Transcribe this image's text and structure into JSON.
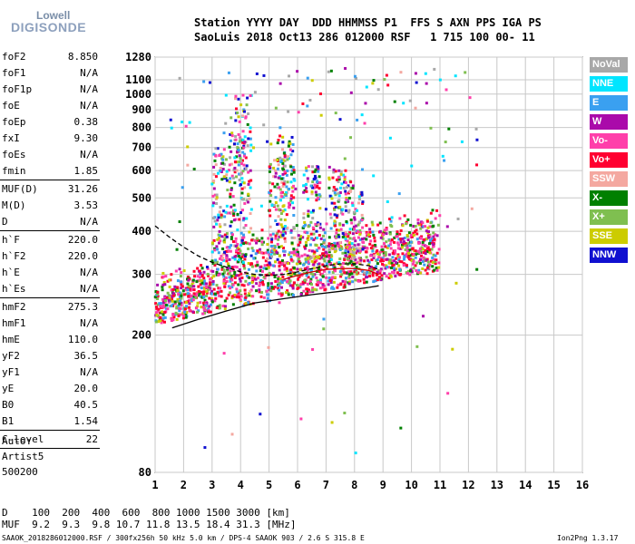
{
  "logo": {
    "line1": "Lowell",
    "line2": "DIGISONDE"
  },
  "header": {
    "line1": "Station YYYY DAY  DDD HHMMSS P1  FFS S AXN PPS IGA PS",
    "line2": "SaoLuis 2018 Oct13 286 012000 RSF   1 715 100 00- 11"
  },
  "params": [
    {
      "name": "foF2",
      "value": "8.850"
    },
    {
      "name": "foF1",
      "value": "N/A"
    },
    {
      "name": "foF1p",
      "value": "N/A"
    },
    {
      "name": "foE",
      "value": "N/A"
    },
    {
      "name": "foEp",
      "value": "0.38"
    },
    {
      "name": "fxI",
      "value": "9.30"
    },
    {
      "name": "foEs",
      "value": "N/A"
    },
    {
      "name": "fmin",
      "value": "1.85"
    },
    {
      "name": "MUF(D)",
      "value": "31.26"
    },
    {
      "name": "M(D)",
      "value": "3.53"
    },
    {
      "name": "D",
      "value": "N/A"
    },
    {
      "name": "h`F",
      "value": "220.0"
    },
    {
      "name": "h`F2",
      "value": "220.0"
    },
    {
      "name": "h`E",
      "value": "N/A"
    },
    {
      "name": "h`Es",
      "value": "N/A"
    },
    {
      "name": "hmF2",
      "value": "275.3"
    },
    {
      "name": "hmF1",
      "value": "N/A"
    },
    {
      "name": "hmE",
      "value": "110.0"
    },
    {
      "name": "yF2",
      "value": "36.5"
    },
    {
      "name": "yF1",
      "value": "N/A"
    },
    {
      "name": "yE",
      "value": "20.0"
    },
    {
      "name": "B0",
      "value": "40.5"
    },
    {
      "name": "B1",
      "value": "1.54"
    },
    {
      "name": "C-level",
      "value": "22"
    }
  ],
  "auto": {
    "line1": "Auto:",
    "line2": "Artist5",
    "line3": "500200"
  },
  "legend": [
    {
      "label": "NoVal",
      "color": "#a8a8a8"
    },
    {
      "label": "NNE",
      "color": "#00e5ff"
    },
    {
      "label": "E",
      "color": "#3aa0f0"
    },
    {
      "label": "W",
      "color": "#aa0aaa"
    },
    {
      "label": "Vo-",
      "color": "#ff3faa"
    },
    {
      "label": "Vo+",
      "color": "#ff0030"
    },
    {
      "label": "SSW",
      "color": "#f4a8a0"
    },
    {
      "label": "X-",
      "color": "#008000"
    },
    {
      "label": "X+",
      "color": "#7fbf50"
    },
    {
      "label": "SSE",
      "color": "#cccc00"
    },
    {
      "label": "NNW",
      "color": "#1010d0"
    }
  ],
  "bottom": {
    "dline": "D    100  200  400  600  800 1000 1500 3000 [km]",
    "mufline": "MUF  9.2  9.3  9.8 10.7 11.8 13.5 18.4 31.3 [MHz]"
  },
  "footer": {
    "left": "SAAOK_2018286012000.RSF / 300fx256h 50 kHz 5.0 km / DPS-4 SAAOK 903 / 2.6 S 315.8 E",
    "right": "Ion2Png 1.3.17"
  },
  "chart_data": {
    "type": "scatter",
    "x_ticks": [
      1,
      2,
      3,
      4,
      5,
      6,
      7,
      8,
      9,
      10,
      11,
      12,
      13,
      14,
      15,
      16
    ],
    "y_ticks": [
      80,
      200,
      300,
      400,
      500,
      600,
      700,
      800,
      900,
      1000,
      1100,
      1280
    ],
    "xlim": [
      1,
      16
    ],
    "ylim": [
      80,
      1280
    ],
    "y_scale": "log",
    "grid": true,
    "traces": [
      {
        "name": "",
        "color": "#000000",
        "style": "solid",
        "x": [
          1.6,
          2.5,
          3.5,
          4.5,
          5.5,
          6.5,
          7.5,
          8.5,
          8.85
        ],
        "y": [
          210,
          222,
          235,
          248,
          255,
          262,
          268,
          275,
          278
        ]
      },
      {
        "name": "",
        "color": "#000000",
        "style": "dashed",
        "x": [
          1.0,
          1.5,
          2.0,
          2.5,
          3.0,
          3.5,
          4.0,
          4.5,
          5.0,
          5.5,
          6.0,
          6.5,
          7.0,
          7.5,
          8.0,
          8.5,
          8.85
        ],
        "y": [
          415,
          385,
          360,
          340,
          325,
          315,
          305,
          300,
          298,
          300,
          305,
          312,
          318,
          322,
          322,
          318,
          310
        ]
      },
      {
        "name": "",
        "color": "#d00000",
        "style": "solid",
        "x": [
          5.5,
          6.0,
          6.5,
          7.0,
          7.5,
          8.0,
          8.5,
          8.85
        ],
        "y": [
          290,
          298,
          305,
          310,
          312,
          312,
          308,
          300
        ]
      }
    ]
  }
}
